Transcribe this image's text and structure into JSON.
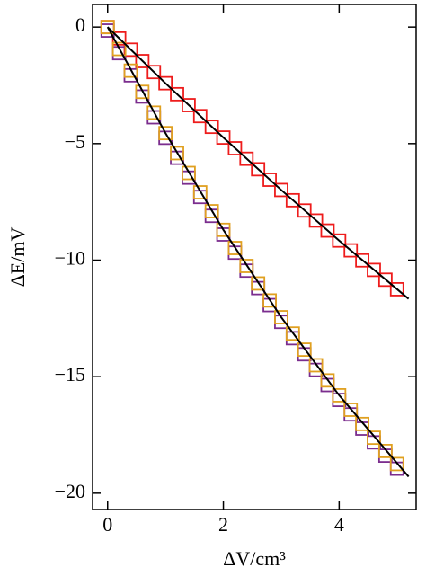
{
  "chart_data": {
    "type": "scatter",
    "x_label": "ΔV/cm³",
    "y_label": "ΔE/mV",
    "xlim": [
      -0.26,
      5.33
    ],
    "ylim": [
      -20.7,
      0.97
    ],
    "xticks": [
      0,
      2,
      4
    ],
    "yticks": [
      0,
      {
        "value": -5,
        "label": "−5"
      },
      {
        "value": -10,
        "label": "−10"
      },
      {
        "value": -15,
        "label": "−15"
      },
      {
        "value": -20,
        "label": "−20"
      }
    ],
    "grid": false,
    "series": [
      {
        "color": "#ee1c1c",
        "marker": "square",
        "x": [
          0,
          0.2,
          0.4,
          0.6,
          0.8,
          1.0,
          1.2,
          1.4,
          1.6,
          1.8,
          2.0,
          2.2,
          2.4,
          2.6,
          2.8,
          3.0,
          3.2,
          3.4,
          3.6,
          3.8,
          4.0,
          4.2,
          4.4,
          4.6,
          4.8,
          5.0
        ],
        "values": [
          0,
          -0.49,
          -0.97,
          -1.46,
          -1.93,
          -2.41,
          -2.88,
          -3.35,
          -3.82,
          -4.28,
          -4.74,
          -5.2,
          -5.65,
          -6.1,
          -6.55,
          -6.99,
          -7.43,
          -7.87,
          -8.3,
          -8.73,
          -9.16,
          -9.58,
          -10.01,
          -10.42,
          -10.84,
          -11.25
        ]
      },
      {
        "color": "#7b2d8e",
        "marker": "square",
        "x": [
          0,
          0.2,
          0.4,
          0.6,
          0.8,
          1.0,
          1.2,
          1.4,
          1.6,
          1.8,
          2.0,
          2.2,
          2.4,
          2.6,
          2.8,
          3.0,
          3.2,
          3.4,
          3.6,
          3.8,
          4.0,
          4.2,
          4.4,
          4.6,
          4.8,
          5.0
        ],
        "values": [
          -0.15,
          -1.12,
          -2.07,
          -2.98,
          -3.87,
          -4.75,
          -5.61,
          -6.46,
          -7.29,
          -8.1,
          -8.9,
          -9.68,
          -10.45,
          -11.2,
          -11.93,
          -12.65,
          -13.35,
          -14.04,
          -14.71,
          -15.36,
          -16.0,
          -16.62,
          -17.23,
          -17.82,
          -18.39,
          -18.95
        ]
      },
      {
        "color": "#e0a020",
        "marker": "square",
        "x": [
          0,
          0.2,
          0.4,
          0.6,
          0.8,
          1.0,
          1.2,
          1.4,
          1.6,
          1.8,
          2.0,
          2.2,
          2.4,
          2.6,
          2.8,
          3.0,
          3.2,
          3.4,
          3.6,
          3.8,
          4.0,
          4.2,
          4.4,
          4.6,
          4.8,
          5.0
        ],
        "values": [
          0,
          -0.94,
          -1.87,
          -2.78,
          -3.67,
          -4.55,
          -5.41,
          -6.26,
          -7.09,
          -7.9,
          -8.7,
          -9.48,
          -10.25,
          -11.0,
          -11.73,
          -12.45,
          -13.15,
          -13.84,
          -14.51,
          -15.16,
          -15.8,
          -16.42,
          -17.03,
          -17.62,
          -18.19,
          -18.75
        ]
      },
      {
        "color": "#000000",
        "marker": "line",
        "x": [
          0,
          1,
          2,
          3,
          4,
          5.2
        ],
        "values": [
          0,
          -2.41,
          -4.74,
          -6.99,
          -9.16,
          -11.66
        ]
      },
      {
        "color": "#000000",
        "marker": "line",
        "x": [
          0,
          1,
          2,
          3,
          4,
          5.2
        ],
        "values": [
          0,
          -4.55,
          -8.7,
          -12.45,
          -15.8,
          -19.29
        ]
      }
    ]
  }
}
